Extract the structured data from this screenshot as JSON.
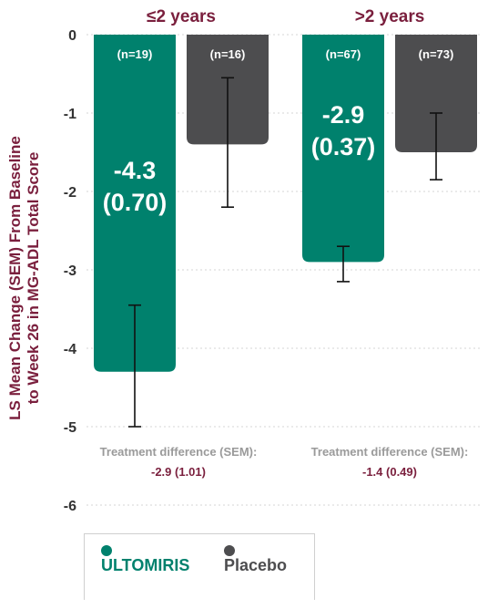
{
  "chart_data": {
    "type": "bar",
    "ylabel_line1": "LS Mean Change (SEM) From Baseline",
    "ylabel_line2": "to Week 26 in MG-ADL Total Score",
    "ylim": [
      -6,
      0
    ],
    "yticks": [
      "0",
      "-1",
      "-2",
      "-3",
      "-4",
      "-5",
      "-6"
    ],
    "tick_values": [
      0,
      -1,
      -2,
      -3,
      -4,
      -5,
      -6
    ],
    "grid": true,
    "groups": [
      {
        "title": "≤2 years",
        "treatment_difference_label": "Treatment difference (SEM):",
        "treatment_difference_value": "-2.9 (1.01)",
        "bars": [
          {
            "series": "ULTOMIRIS",
            "n_label": "(n=19)",
            "value": -4.3,
            "sem": 0.7,
            "err_low": -5.0,
            "err_high": -3.45,
            "label_value": "-4.3",
            "label_sem": "(0.70)"
          },
          {
            "series": "Placebo",
            "n_label": "(n=16)",
            "value": -1.4,
            "err_low": -2.2,
            "err_high": -0.55
          }
        ]
      },
      {
        "title": ">2 years",
        "treatment_difference_label": "Treatment difference (SEM):",
        "treatment_difference_value": "-1.4 (0.49)",
        "bars": [
          {
            "series": "ULTOMIRIS",
            "n_label": "(n=67)",
            "value": -2.9,
            "sem": 0.37,
            "err_low": -3.15,
            "err_high": -2.7,
            "label_value": "-2.9",
            "label_sem": "(0.37)"
          },
          {
            "series": "Placebo",
            "n_label": "(n=73)",
            "value": -1.5,
            "err_low": -1.85,
            "err_high": -1.0
          }
        ]
      }
    ],
    "series": [
      {
        "name": "ULTOMIRIS",
        "color": "#00816d"
      },
      {
        "name": "Placebo",
        "color": "#4d4d4f"
      }
    ]
  },
  "legend": {
    "items": [
      {
        "label": "ULTOMIRIS",
        "color": "#00816d"
      },
      {
        "label": "Placebo",
        "color": "#4d4d4f"
      }
    ]
  }
}
